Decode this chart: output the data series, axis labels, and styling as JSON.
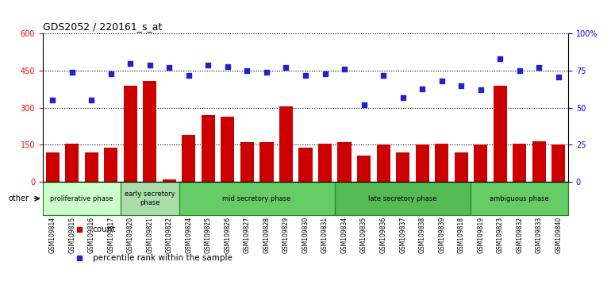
{
  "title": "GDS2052 / 220161_s_at",
  "samples": [
    "GSM109814",
    "GSM109815",
    "GSM109816",
    "GSM109817",
    "GSM109820",
    "GSM109821",
    "GSM109822",
    "GSM109824",
    "GSM109825",
    "GSM109826",
    "GSM109827",
    "GSM109828",
    "GSM109829",
    "GSM109830",
    "GSM109831",
    "GSM109834",
    "GSM109835",
    "GSM109836",
    "GSM109837",
    "GSM109838",
    "GSM109839",
    "GSM109818",
    "GSM109819",
    "GSM109823",
    "GSM109832",
    "GSM109833",
    "GSM109840"
  ],
  "counts": [
    120,
    155,
    120,
    140,
    390,
    410,
    10,
    190,
    270,
    265,
    160,
    160,
    305,
    140,
    155,
    160,
    105,
    150,
    120,
    150,
    155,
    120,
    150,
    390,
    155,
    165,
    150
  ],
  "percentiles": [
    55,
    74,
    55,
    73,
    80,
    79,
    77,
    72,
    79,
    78,
    75,
    74,
    77,
    72,
    73,
    76,
    52,
    72,
    57,
    63,
    68,
    65,
    62,
    83,
    75,
    77,
    71
  ],
  "bar_color": "#cc0000",
  "dot_color": "#2222cc",
  "ylim_left": [
    0,
    600
  ],
  "ylim_right": [
    0,
    100
  ],
  "yticks_left": [
    0,
    150,
    300,
    450,
    600
  ],
  "yticks_right": [
    0,
    25,
    50,
    75,
    100
  ],
  "yticklabels_right": [
    "0",
    "25",
    "50",
    "75",
    "100%"
  ],
  "phases": [
    {
      "label": "proliferative phase",
      "start": 0,
      "end": 4,
      "color": "#ccffcc"
    },
    {
      "label": "early secretory\nphase",
      "start": 4,
      "end": 7,
      "color": "#aaddaa"
    },
    {
      "label": "mid secretory phase",
      "start": 7,
      "end": 15,
      "color": "#66cc66"
    },
    {
      "label": "late secretory phase",
      "start": 15,
      "end": 22,
      "color": "#55bb55"
    },
    {
      "label": "ambiguous phase",
      "start": 22,
      "end": 27,
      "color": "#66cc66"
    }
  ],
  "bg_color": "#ffffff",
  "grid_color": "#000000",
  "spine_color": "#000000"
}
